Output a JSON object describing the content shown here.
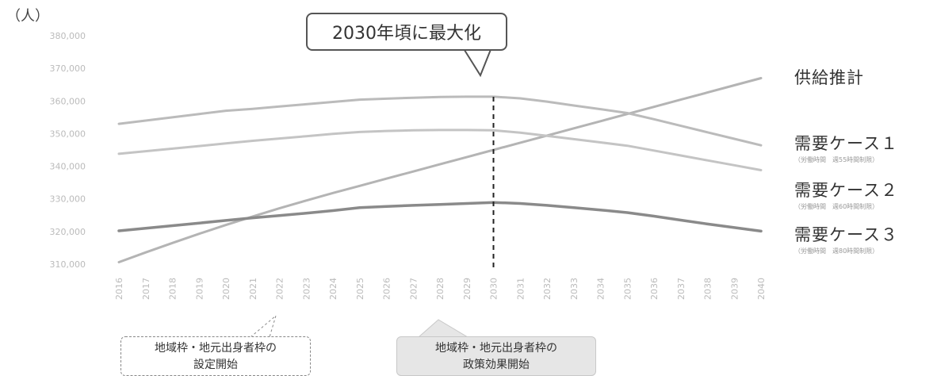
{
  "chart_data": {
    "type": "line",
    "unit": "（人）",
    "y_ticks": [
      "380,000",
      "370,000",
      "360,000",
      "350,000",
      "340,000",
      "330,000",
      "320,000",
      "310,000"
    ],
    "ylim": [
      310000,
      380000
    ],
    "categories": [
      "2016",
      "2017",
      "2018",
      "2019",
      "2020",
      "2021",
      "2022",
      "2023",
      "2024",
      "2025",
      "2026",
      "2027",
      "2028",
      "2029",
      "2030",
      "2031",
      "2032",
      "2033",
      "2034",
      "2035",
      "2036",
      "2037",
      "2038",
      "2039",
      "2040"
    ],
    "series": [
      {
        "name": "供給推計",
        "color": "#b4b4b4",
        "values": [
          310600,
          313600,
          316500,
          319300,
          322000,
          324600,
          327100,
          329500,
          331800,
          334000,
          336200,
          338400,
          340600,
          342800,
          345000,
          347200,
          349400,
          351600,
          353800,
          356000,
          358200,
          360400,
          362600,
          364800,
          367000
        ]
      },
      {
        "name": "需要ケース１",
        "note": "（労働時間　週55時間制限）",
        "color": "#bbbbbb",
        "values": [
          353000,
          354000,
          355000,
          356000,
          357000,
          357600,
          358300,
          359000,
          359700,
          360400,
          360700,
          361000,
          361200,
          361300,
          361300,
          360800,
          359800,
          358600,
          357500,
          356300,
          354400,
          352400,
          350400,
          348400,
          346400
        ]
      },
      {
        "name": "需要ケース２",
        "note": "（労働時間　週60時間制限）",
        "color": "#c4c4c4",
        "values": [
          343800,
          344600,
          345400,
          346200,
          347000,
          347800,
          348500,
          349200,
          349900,
          350500,
          350800,
          351000,
          351100,
          351100,
          351000,
          350300,
          349300,
          348300,
          347300,
          346300,
          344800,
          343300,
          341800,
          340300,
          338800
        ]
      },
      {
        "name": "需要ケース３",
        "note": "（労働時間　週80時間制限）",
        "color": "#8a8a8a",
        "values": [
          320200,
          321000,
          321800,
          322600,
          323400,
          324200,
          324900,
          325600,
          326400,
          327300,
          327700,
          328000,
          328300,
          328600,
          328900,
          328600,
          328000,
          327300,
          326600,
          325800,
          324700,
          323500,
          322300,
          321200,
          320100
        ]
      }
    ],
    "annotations": {
      "peak_callout": "2030年頃に最大化",
      "peak_year": "2030",
      "note_left": [
        "地域枠・地元出身者枠の",
        "設定開始"
      ],
      "note_right": [
        "地域枠・地元出身者枠の",
        "政策効果開始"
      ]
    }
  }
}
